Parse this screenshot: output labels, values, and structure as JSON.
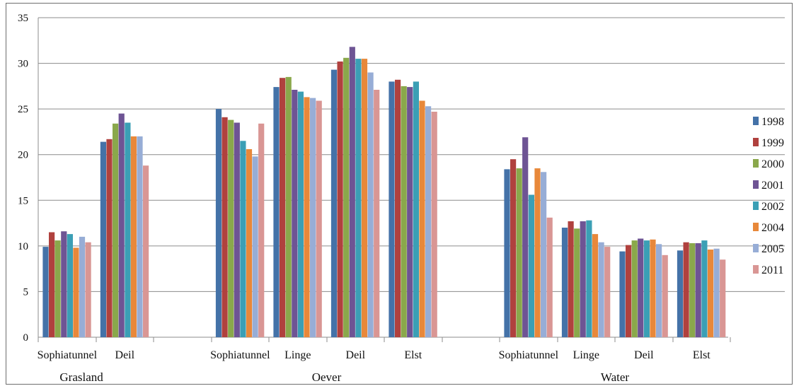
{
  "chart_data": {
    "type": "bar",
    "ylim": [
      0,
      35
    ],
    "yticks": [
      0,
      5,
      10,
      15,
      20,
      25,
      30,
      35
    ],
    "grid": true,
    "legend_position": "right",
    "series": [
      {
        "name": "1998",
        "color": "#4472a8"
      },
      {
        "name": "1999",
        "color": "#b0413e"
      },
      {
        "name": "2000",
        "color": "#8aa84b"
      },
      {
        "name": "2001",
        "color": "#6e5494"
      },
      {
        "name": "2002",
        "color": "#3b9fb5"
      },
      {
        "name": "2004",
        "color": "#e8883a"
      },
      {
        "name": "2005",
        "color": "#97add6"
      },
      {
        "name": "2011",
        "color": "#d99694"
      }
    ],
    "groups": [
      {
        "name": "Grasland",
        "categories": [
          {
            "label": "Sophiatunnel",
            "values": [
              9.9,
              11.5,
              10.6,
              11.6,
              11.3,
              9.8,
              11.0,
              10.4
            ]
          },
          {
            "label": "Deil",
            "values": [
              21.4,
              21.7,
              23.4,
              24.5,
              23.5,
              22.0,
              22.0,
              18.8
            ]
          }
        ]
      },
      {
        "name": "Oever",
        "categories": [
          {
            "label": "Sophiatunnel",
            "values": [
              25.0,
              24.1,
              23.8,
              23.5,
              21.5,
              20.6,
              19.8,
              23.4
            ]
          },
          {
            "label": "Linge",
            "values": [
              27.4,
              28.4,
              28.5,
              27.1,
              26.9,
              26.3,
              26.2,
              25.9
            ]
          },
          {
            "label": "Deil",
            "values": [
              29.3,
              30.2,
              30.6,
              31.8,
              30.5,
              30.5,
              29.0,
              27.1
            ]
          },
          {
            "label": "Elst",
            "values": [
              28.0,
              28.2,
              27.5,
              27.4,
              28.0,
              25.9,
              25.3,
              24.7
            ]
          }
        ]
      },
      {
        "name": "Water",
        "categories": [
          {
            "label": "Sophiatunnel",
            "values": [
              18.4,
              19.5,
              18.5,
              21.9,
              15.6,
              18.5,
              18.1,
              13.1
            ]
          },
          {
            "label": "Linge",
            "values": [
              12.0,
              12.7,
              11.9,
              12.7,
              12.8,
              11.3,
              10.4,
              9.9
            ]
          },
          {
            "label": "Deil",
            "values": [
              9.4,
              10.1,
              10.6,
              10.8,
              10.6,
              10.7,
              10.2,
              9.0
            ]
          },
          {
            "label": "Elst",
            "values": [
              9.5,
              10.4,
              10.3,
              10.3,
              10.6,
              9.6,
              9.7,
              8.5
            ]
          }
        ]
      }
    ]
  }
}
